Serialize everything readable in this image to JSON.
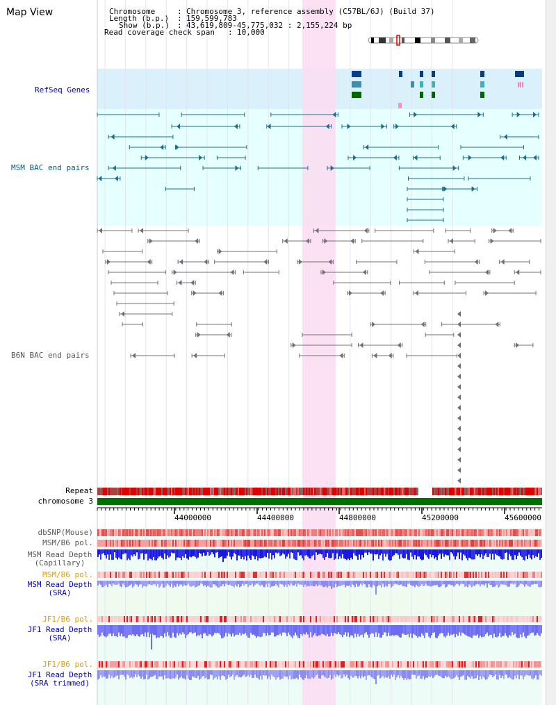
{
  "title": "Map View",
  "info": {
    "chromosome_label": "Chromosome",
    "chromosome_value": "Chromosome 3, reference assembly (C57BL/6J) (Build 37)",
    "length_label": "Length (b.p.)",
    "length_value": "159,599,783",
    "show_label": "Show (b.p.)",
    "show_value": "43,619,809-45,775,032 : 2,155,224 bp",
    "span_label": "Read coverage check span",
    "span_value": "10,000"
  },
  "tracks": {
    "refseq": "RefSeq Genes",
    "msm_bac": "MSM BAC end pairs",
    "b6n_bac": "B6N BAC end pairs",
    "repeat": "Repeat",
    "chromosome": "chromosome 3",
    "dbsnp": "dbSNP(Mouse)",
    "msm_b6_pol_1": "MSM/B6 pol.",
    "msm_depth_cap_1": "MSM Read Depth",
    "msm_depth_cap_2": "(Capillary)",
    "msm_b6_pol_2": "MSM/B6 pol.",
    "msm_depth_sra_1": "MSM Read Depth",
    "msm_depth_sra_2": "(SRA)",
    "jf1_pol_1": "JF1/B6 pol.",
    "jf1_depth_sra_1": "JF1 Read Depth",
    "jf1_depth_sra_2": "(SRA)",
    "jf1_pol_2": "JF1/B6 pol.",
    "jf1_depth_trim_1": "JF1 Read Depth",
    "jf1_depth_trim_2": "(SRA trimmed)"
  },
  "ruler": {
    "ticks": [
      "44000000",
      "44400000",
      "44800000",
      "45200000",
      "45600000"
    ]
  },
  "colors": {
    "refseq_bg": "#daf0fa",
    "track_bg": "#e6ffff",
    "highlight": "#fbdcf2",
    "msm_color": "#1a6e8c",
    "b6n_color": "#707070",
    "chromosome_bar": "#007000",
    "label_blue": "#0000c0",
    "label_teal": "#006080",
    "label_orange": "#e0a000"
  }
}
